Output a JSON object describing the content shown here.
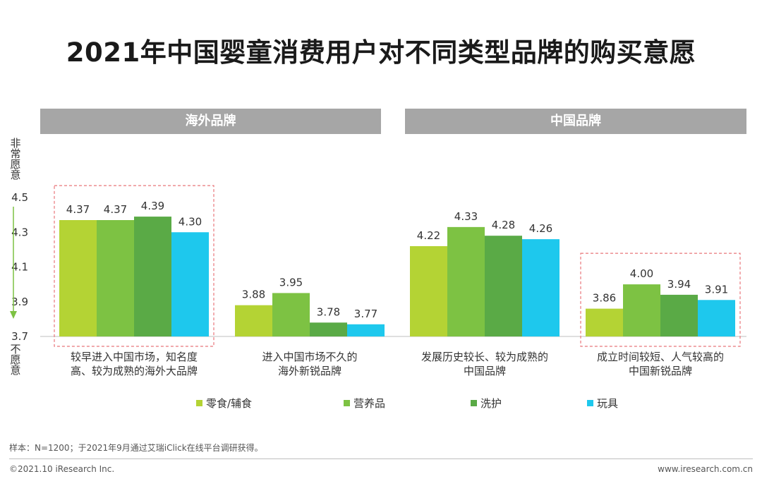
{
  "title": "2021年中国婴童消费用户对不同类型品牌的购买意愿",
  "groups": [
    {
      "label": "海外品牌"
    },
    {
      "label": "中国品牌"
    }
  ],
  "y_axis": {
    "top_label": "非常愿意",
    "bottom_label": "不愿意"
  },
  "colors": {
    "arrow": "#7dc243",
    "highlight_box": "#e8767a",
    "header_bg": "#a6a6a6"
  },
  "chart_data": {
    "type": "bar",
    "title": "2021年中国婴童消费用户对不同类型品牌的购买意愿",
    "xlabel": "",
    "ylabel": "",
    "ylim": [
      3.7,
      4.5
    ],
    "yticks": [
      "4.5",
      "4.3",
      "4.1",
      "3.9",
      "3.7"
    ],
    "grid": false,
    "legend_position": "bottom",
    "categories": [
      "较早进入中国市场，知名度\n高、较为成熟的海外大品牌",
      "进入中国市场不久的\n海外新锐品牌",
      "发展历史较长、较为成熟的\n中国品牌",
      "成立时间较短、人气较高的\n中国新锐品牌"
    ],
    "series": [
      {
        "name": "零食/辅食",
        "color": "#b4d334",
        "values": [
          4.37,
          3.88,
          4.22,
          3.86
        ],
        "labels": [
          "4.37",
          "3.88",
          "4.22",
          "3.86"
        ]
      },
      {
        "name": "营养品",
        "color": "#7dc243",
        "values": [
          4.37,
          3.95,
          4.33,
          4.0
        ],
        "labels": [
          "4.37",
          "3.95",
          "4.33",
          "4.00"
        ]
      },
      {
        "name": "洗护",
        "color": "#5aaa46",
        "values": [
          4.39,
          3.78,
          4.28,
          3.94
        ],
        "labels": [
          "4.39",
          "3.78",
          "4.28",
          "3.94"
        ]
      },
      {
        "name": "玩具",
        "color": "#1ec8ed",
        "values": [
          4.3,
          3.77,
          4.26,
          3.91
        ],
        "labels": [
          "4.30",
          "3.77",
          "4.26",
          "3.91"
        ]
      }
    ],
    "highlighted_categories": [
      0,
      3
    ]
  },
  "footer": {
    "note": "样本：N=1200；于2021年9月通过艾瑞iClick在线平台调研获得。",
    "copyright": "©2021.10 iResearch Inc.",
    "url": "www.iresearch.com.cn"
  }
}
